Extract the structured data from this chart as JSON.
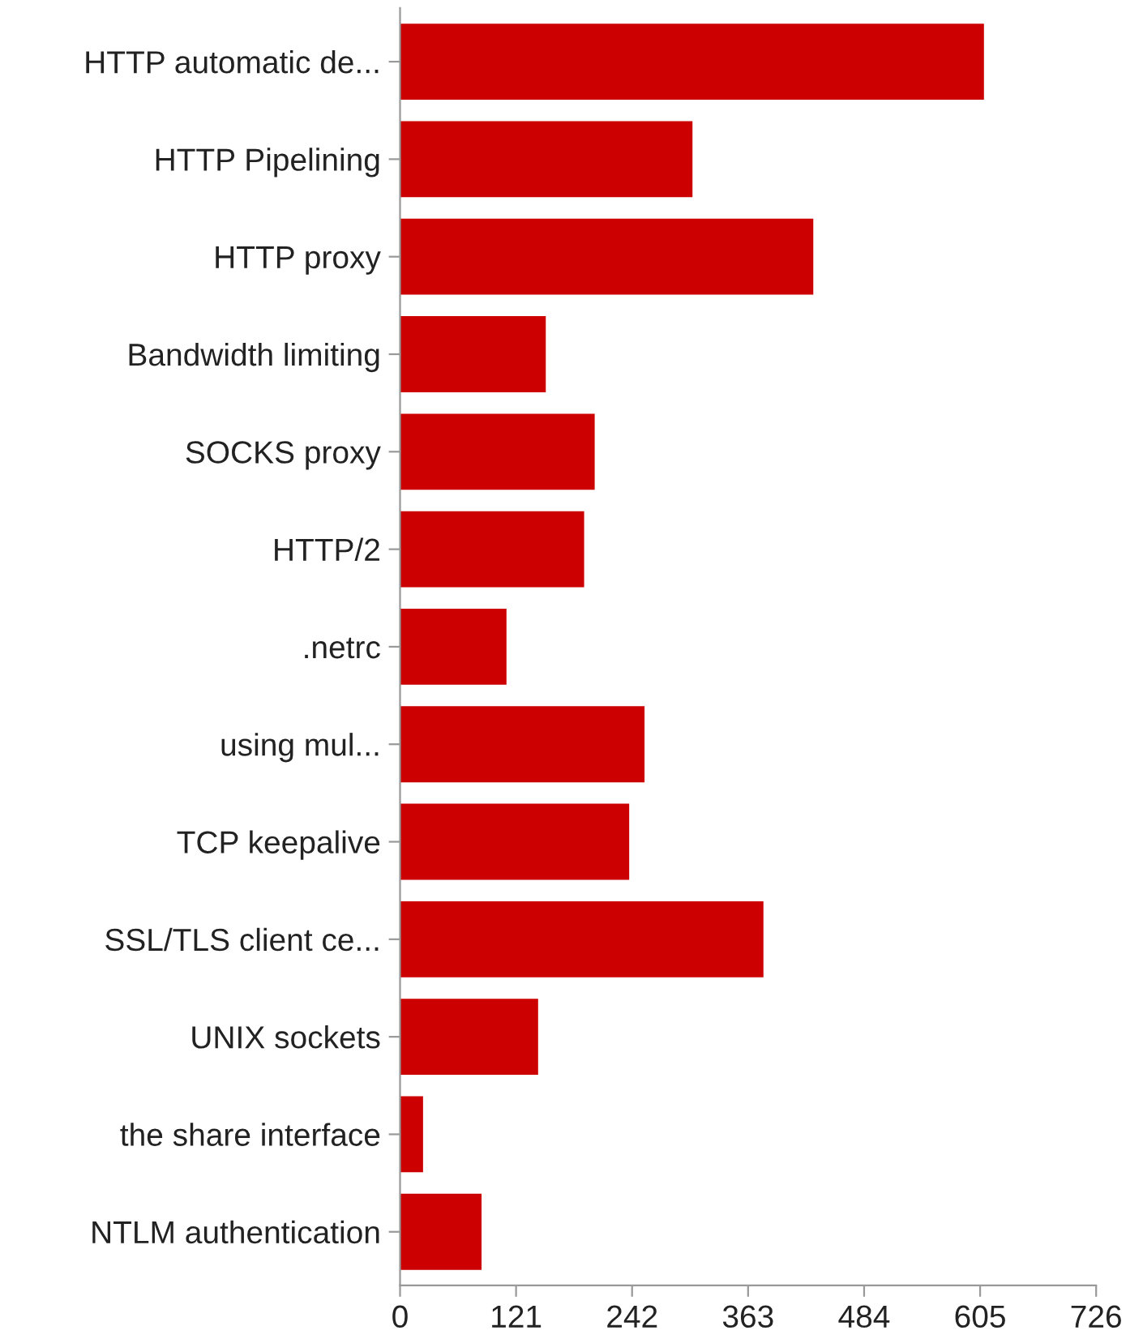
{
  "chart_data": {
    "type": "bar",
    "orientation": "horizontal",
    "categories": [
      "HTTP automatic de...",
      "HTTP Pipelining",
      "HTTP proxy",
      "Bandwidth limiting",
      "SOCKS proxy",
      "HTTP/2",
      ".netrc",
      "using mul...",
      "TCP keepalive",
      "SSL/TLS client ce...",
      "UNIX sockets",
      "the share interface",
      "NTLM authentication"
    ],
    "values": [
      609,
      305,
      431,
      152,
      203,
      192,
      111,
      255,
      239,
      379,
      144,
      24,
      85
    ],
    "color": "#cc0000",
    "xlim": [
      0,
      726
    ],
    "xticks": [
      0,
      121,
      242,
      363,
      484,
      605,
      726
    ],
    "grid": false,
    "legend": false
  }
}
